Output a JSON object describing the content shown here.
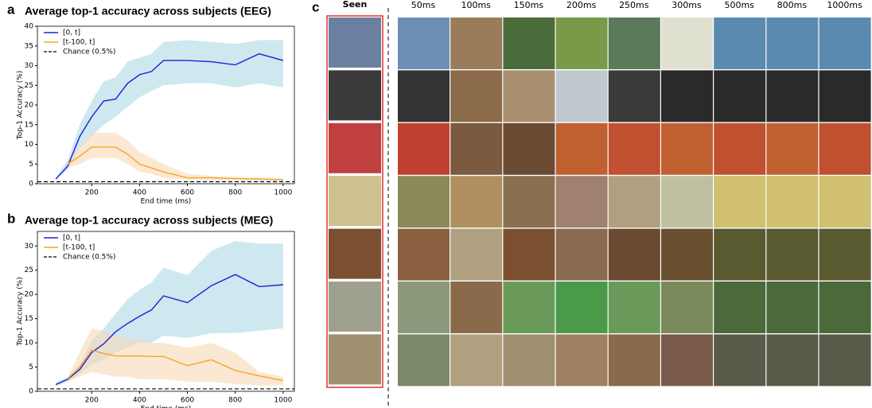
{
  "chart_data": [
    {
      "type": "line",
      "panel": "a",
      "title": "Average top-1 accuracy across subjects (EEG)",
      "xlabel": "End time (ms)",
      "ylabel": "Top-1 Accuracy (%)",
      "x": [
        50,
        100,
        150,
        200,
        250,
        300,
        350,
        400,
        450,
        500,
        600,
        700,
        800,
        900,
        1000
      ],
      "series": [
        {
          "name": "[0, t]",
          "color": "#1f1fd6",
          "band_color": "#add8e6",
          "values": [
            1.2,
            4.5,
            12,
            17,
            21,
            21.5,
            25.5,
            27.7,
            28.5,
            31.3,
            31.3,
            31,
            30.2,
            33,
            31.3
          ],
          "lower": [
            1,
            3.5,
            9,
            12,
            15,
            17,
            19.5,
            22,
            23.5,
            25,
            25.5,
            25.5,
            24.5,
            25.5,
            24.5
          ],
          "upper": [
            1.5,
            6,
            15,
            21,
            26,
            27,
            31,
            32,
            33,
            36,
            36.5,
            36,
            35.5,
            36.5,
            36.5
          ]
        },
        {
          "name": "[t-100, t]",
          "color": "#f5a623",
          "band_color": "#f9d9b5",
          "values": [
            null,
            5,
            7,
            9.3,
            9.3,
            9.3,
            7.5,
            5,
            4,
            3,
            1.5,
            1.5,
            1.3,
            1.2,
            1.0
          ],
          "lower": [
            null,
            4,
            5,
            6.5,
            6.5,
            6.5,
            5,
            3,
            2.5,
            1.5,
            1,
            1,
            0.9,
            0.8,
            0.7
          ],
          "upper": [
            null,
            6,
            9,
            13,
            13,
            13,
            11,
            8,
            6.5,
            5,
            2.5,
            2,
            1.8,
            1.6,
            1.4
          ]
        }
      ],
      "reference_line": {
        "name": "Chance (0.5%)",
        "value": 0.5
      },
      "xlim": [
        -27,
        1047
      ],
      "ylim": [
        0,
        40
      ],
      "xticks": [
        200,
        400,
        600,
        800,
        1000
      ],
      "yticks": [
        0,
        5,
        10,
        15,
        20,
        25,
        30,
        35,
        40
      ]
    },
    {
      "type": "line",
      "panel": "b",
      "title": "Average top-1 accuracy across subjects (MEG)",
      "xlabel": "End time (ms)",
      "ylabel": "Top-1 Accuracy (%)",
      "x": [
        50,
        100,
        150,
        200,
        250,
        300,
        350,
        400,
        450,
        500,
        600,
        700,
        800,
        900,
        1000
      ],
      "series": [
        {
          "name": "[0, t]",
          "color": "#1f1fd6",
          "band_color": "#add8e6",
          "values": [
            1.4,
            2.5,
            4.5,
            8,
            9.8,
            12.3,
            14,
            15.5,
            16.8,
            19.7,
            18.3,
            21.8,
            24.1,
            21.6,
            22
          ],
          "lower": [
            1,
            2,
            3.5,
            5.5,
            6.5,
            8,
            9,
            10,
            10,
            11.5,
            11,
            12,
            12,
            12.5,
            13
          ],
          "upper": [
            1.8,
            3,
            5.5,
            10.5,
            13,
            16,
            19,
            21,
            22.5,
            25.5,
            24,
            29,
            31,
            30.5,
            30.5
          ]
        },
        {
          "name": "[t-100, t]",
          "color": "#f5a623",
          "band_color": "#f9d9b5",
          "values": [
            null,
            2.6,
            5,
            8.5,
            7.8,
            7.3,
            7.3,
            7.3,
            7.2,
            7.2,
            5.3,
            6.5,
            4.3,
            3.2,
            2.2
          ],
          "lower": [
            null,
            2,
            3,
            4,
            3.5,
            3,
            3,
            2.5,
            2.5,
            2.5,
            2,
            2,
            1.5,
            1.2,
            1.2
          ],
          "upper": [
            null,
            3,
            8,
            13,
            12.5,
            11.5,
            11,
            10.5,
            10,
            10,
            9,
            10,
            8,
            4,
            3
          ]
        }
      ],
      "reference_line": {
        "name": "Chance (0.5%)",
        "value": 0.5
      },
      "xlim": [
        -27,
        1047
      ],
      "ylim": [
        0,
        33
      ],
      "xticks": [
        200,
        400,
        600,
        800,
        1000
      ],
      "yticks": [
        0,
        5,
        10,
        15,
        20,
        25,
        30
      ]
    }
  ],
  "image_grid": {
    "panel": "c",
    "seen_label": "Seen",
    "columns": [
      "50ms",
      "100ms",
      "150ms",
      "200ms",
      "250ms",
      "300ms",
      "500ms",
      "800ms",
      "1000ms"
    ]
  }
}
